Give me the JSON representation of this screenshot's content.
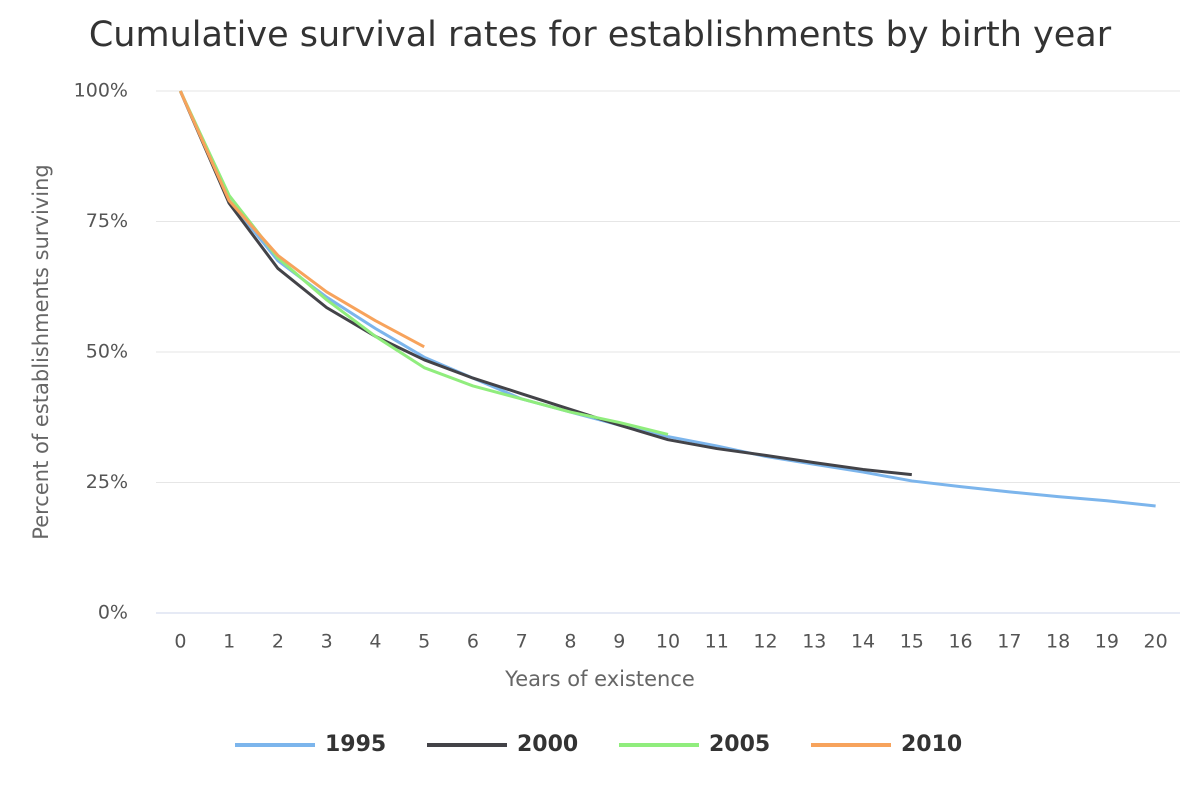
{
  "chart_data": {
    "type": "line",
    "title": "Cumulative survival rates for establishments by birth year",
    "x_label": "Years of existence",
    "y_label": "Percent of establishments surviving",
    "categories": [
      "0",
      "1",
      "2",
      "3",
      "4",
      "5",
      "6",
      "7",
      "8",
      "9",
      "10",
      "11",
      "12",
      "13",
      "14",
      "15",
      "16",
      "17",
      "18",
      "19",
      "20"
    ],
    "series": [
      {
        "name": "1995",
        "color": "#7cb5ec",
        "values": [
          100,
          79,
          67.5,
          60.5,
          54.5,
          49,
          45,
          41,
          38.5,
          36,
          33.8,
          32,
          30,
          28.5,
          27,
          25.3,
          24.2,
          23.2,
          22.3,
          21.5,
          20.5
        ]
      },
      {
        "name": "2000",
        "color": "#434348",
        "values": [
          100,
          78.5,
          66,
          58.5,
          53,
          48.5,
          45,
          42,
          39,
          36,
          33.2,
          31.5,
          30.2,
          28.8,
          27.5,
          26.5,
          null,
          null,
          null,
          null,
          null
        ]
      },
      {
        "name": "2005",
        "color": "#90ed7d",
        "values": [
          100,
          80,
          68,
          60,
          53,
          47,
          43.5,
          41,
          38.5,
          36.5,
          34.2,
          null,
          null,
          null,
          null,
          null,
          null,
          null,
          null,
          null,
          null
        ]
      },
      {
        "name": "2010",
        "color": "#f7a35c",
        "values": [
          100,
          79,
          68.5,
          61.5,
          56,
          51,
          null,
          null,
          null,
          null,
          null,
          null,
          null,
          null,
          null,
          null,
          null,
          null,
          null,
          null,
          null
        ]
      }
    ],
    "ylim": [
      0,
      100
    ],
    "yticks": [
      {
        "value": 0,
        "label": "0%"
      },
      {
        "value": 25,
        "label": "25%"
      },
      {
        "value": 50,
        "label": "50%"
      },
      {
        "value": 75,
        "label": "75%"
      },
      {
        "value": 100,
        "label": "100%"
      }
    ],
    "grid": true,
    "legend": "bottom"
  }
}
